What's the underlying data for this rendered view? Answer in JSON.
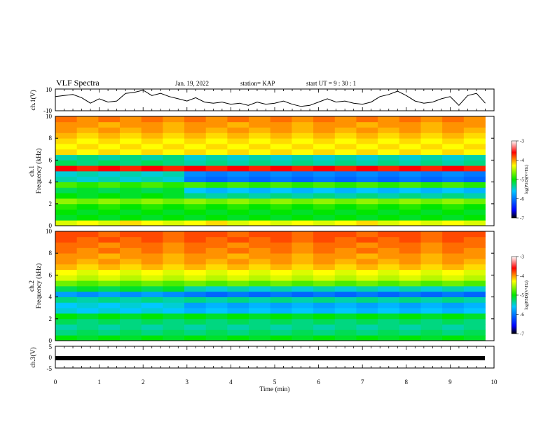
{
  "header": {
    "title": "VLF Spectra",
    "date": "Jan. 19, 2022",
    "station": "station= KAP",
    "start": "start  UT  =   9 : 30 : 1"
  },
  "axes": {
    "ch1_wave_ylabel": "ch.1(V)",
    "ch1_spec_ylabel_a": "ch.1",
    "ch1_spec_ylabel_b": "Frequency (kHz)",
    "ch2_spec_ylabel_a": "ch.2",
    "ch2_spec_ylabel_b": "Frequency (kHz)",
    "ch3_ylabel": "ch.3(V)",
    "xlabel": "Time (min)",
    "colorbar_label": "log(PSD)(V²/Hz)"
  },
  "chart_data": [
    {
      "panel": "ch.1 waveform",
      "type": "line",
      "x": [
        0.0,
        0.2,
        0.4,
        0.6,
        0.8,
        1.0,
        1.2,
        1.4,
        1.6,
        1.8,
        2.0,
        2.2,
        2.4,
        2.6,
        2.8,
        3.0,
        3.2,
        3.4,
        3.6,
        3.8,
        4.0,
        4.2,
        4.4,
        4.6,
        4.8,
        5.0,
        5.2,
        5.4,
        5.6,
        5.8,
        6.0,
        6.2,
        6.4,
        6.6,
        6.8,
        7.0,
        7.2,
        7.4,
        7.6,
        7.8,
        8.0,
        8.2,
        8.4,
        8.6,
        8.8,
        9.0,
        9.2,
        9.4,
        9.6,
        9.8
      ],
      "y": [
        3,
        4,
        5,
        2,
        -3,
        1,
        -2,
        -1,
        6,
        7,
        9,
        4,
        6,
        3,
        1,
        -1,
        2,
        -2,
        -3,
        -2,
        -4,
        -3,
        -5,
        -2,
        -4,
        -3,
        -1,
        -4,
        -6,
        -5,
        -2,
        1,
        -2,
        -1,
        -3,
        -4,
        -2,
        3,
        5,
        8,
        4,
        -1,
        -3,
        -2,
        1,
        3,
        -5,
        4,
        6,
        -3
      ],
      "xlim": [
        0,
        10
      ],
      "ylim": [
        -10,
        10
      ],
      "yticks": [
        "10",
        "-10"
      ]
    },
    {
      "panel": "ch.1 spectrogram",
      "type": "heatmap",
      "xlim": [
        0,
        10
      ],
      "ylim": [
        0,
        10
      ],
      "yticks": [
        "0",
        "2",
        "4",
        "6",
        "8",
        "10"
      ],
      "colorbar_ticks": [
        "-3",
        "-4",
        "-5",
        "-6",
        "-7"
      ],
      "time_bins": [
        0.0,
        0.5,
        1.0,
        1.5,
        2.0,
        2.5,
        3.0,
        3.5,
        4.0,
        4.5,
        5.0,
        5.5,
        6.0,
        6.5,
        7.0,
        7.5,
        8.0,
        8.5,
        9.0,
        9.5
      ],
      "freq_bins": [
        0.25,
        0.75,
        1.25,
        1.75,
        2.25,
        2.75,
        3.25,
        3.75,
        4.25,
        4.75,
        5.25,
        5.75,
        6.25,
        6.75,
        7.25,
        7.75,
        8.25,
        8.75,
        9.25,
        9.75
      ],
      "values": [
        [
          -4.4,
          -4.3,
          -4.4,
          -4.2,
          -4.3,
          -4.4,
          -4.3,
          -4.2,
          -4.4,
          -4.3,
          -4.4,
          -4.3,
          -4.4,
          -4.3,
          -4.2,
          -4.4,
          -4.3,
          -4.4,
          -4.3,
          -4.4
        ],
        [
          -5.1,
          -5.0,
          -5.1,
          -5.0,
          -5.1,
          -5.0,
          -5.1,
          -5.0,
          -5.1,
          -5.0,
          -5.1,
          -5.0,
          -5.1,
          -5.0,
          -5.1,
          -5.0,
          -5.1,
          -5.0,
          -5.1,
          -5.0
        ],
        [
          -5.0,
          -5.1,
          -5.0,
          -5.1,
          -5.0,
          -5.1,
          -5.0,
          -5.1,
          -5.0,
          -5.1,
          -5.0,
          -5.1,
          -5.0,
          -5.1,
          -5.0,
          -5.1,
          -5.0,
          -5.1,
          -5.0,
          -5.1
        ],
        [
          -4.9,
          -5.0,
          -4.9,
          -5.0,
          -4.9,
          -5.0,
          -4.9,
          -5.0,
          -4.9,
          -5.0,
          -4.9,
          -5.0,
          -4.9,
          -5.0,
          -4.9,
          -5.0,
          -4.9,
          -5.0,
          -4.9,
          -5.0
        ],
        [
          -4.6,
          -4.7,
          -4.6,
          -4.7,
          -4.6,
          -4.7,
          -4.6,
          -4.7,
          -4.6,
          -4.7,
          -4.6,
          -4.7,
          -4.6,
          -4.7,
          -4.6,
          -4.7,
          -4.6,
          -4.7,
          -4.6,
          -4.7
        ],
        [
          -5.0,
          -5.1,
          -5.0,
          -5.1,
          -5.0,
          -5.1,
          -5.3,
          -5.4,
          -5.3,
          -5.4,
          -5.3,
          -5.4,
          -5.3,
          -5.4,
          -5.3,
          -5.4,
          -5.3,
          -5.4,
          -5.3,
          -5.4
        ],
        [
          -5.2,
          -5.1,
          -5.2,
          -5.1,
          -5.2,
          -5.1,
          -5.6,
          -5.7,
          -5.6,
          -5.7,
          -5.6,
          -5.7,
          -5.6,
          -5.7,
          -5.6,
          -5.7,
          -5.6,
          -5.7,
          -5.6,
          -5.7
        ],
        [
          -4.8,
          -4.9,
          -4.8,
          -4.9,
          -4.8,
          -4.9,
          -4.8,
          -4.9,
          -4.8,
          -4.9,
          -4.8,
          -4.9,
          -4.8,
          -4.9,
          -4.8,
          -4.9,
          -4.8,
          -4.9,
          -4.8,
          -4.9
        ],
        [
          -5.4,
          -5.5,
          -5.4,
          -5.5,
          -5.4,
          -5.5,
          -6.0,
          -6.1,
          -6.0,
          -6.1,
          -6.0,
          -6.1,
          -6.0,
          -6.1,
          -6.0,
          -6.1,
          -6.0,
          -6.1,
          -6.0,
          -6.1
        ],
        [
          -5.5,
          -5.4,
          -5.5,
          -5.4,
          -5.5,
          -5.4,
          -5.9,
          -6.0,
          -5.9,
          -6.0,
          -5.9,
          -6.0,
          -5.9,
          -6.0,
          -5.9,
          -6.0,
          -5.9,
          -6.0,
          -5.9,
          -6.0
        ],
        [
          -3.6,
          -3.7,
          -3.6,
          -3.7,
          -3.6,
          -3.7,
          -3.6,
          -3.7,
          -3.6,
          -3.7,
          -3.6,
          -3.7,
          -3.6,
          -3.7,
          -3.6,
          -3.7,
          -3.6,
          -3.7,
          -3.6,
          -3.7
        ],
        [
          -5.2,
          -5.3,
          -5.2,
          -5.3,
          -5.2,
          -5.3,
          -5.4,
          -5.3,
          -5.4,
          -5.3,
          -5.4,
          -5.3,
          -5.4,
          -5.3,
          -5.4,
          -5.3,
          -5.4,
          -5.3,
          -5.4,
          -5.3
        ],
        [
          -5.4,
          -5.3,
          -5.4,
          -5.3,
          -5.4,
          -5.3,
          -5.5,
          -5.4,
          -5.5,
          -5.4,
          -5.5,
          -5.4,
          -5.5,
          -5.4,
          -5.5,
          -5.4,
          -5.5,
          -5.4,
          -5.5,
          -5.4
        ],
        [
          -4.2,
          -4.3,
          -4.2,
          -4.3,
          -4.2,
          -4.3,
          -4.2,
          -4.3,
          -4.2,
          -4.3,
          -4.2,
          -4.3,
          -4.2,
          -4.3,
          -4.2,
          -4.3,
          -4.2,
          -4.3,
          -4.2,
          -4.3
        ],
        [
          -4.3,
          -4.2,
          -4.3,
          -4.2,
          -4.3,
          -4.2,
          -4.3,
          -4.2,
          -4.3,
          -4.2,
          -4.3,
          -4.2,
          -4.3,
          -4.2,
          -4.3,
          -4.2,
          -4.3,
          -4.2,
          -4.3,
          -4.2
        ],
        [
          -4.2,
          -4.3,
          -4.2,
          -4.3,
          -4.2,
          -4.3,
          -4.2,
          -4.3,
          -4.2,
          -4.3,
          -4.2,
          -4.3,
          -4.2,
          -4.3,
          -4.2,
          -4.3,
          -4.2,
          -4.3,
          -4.2,
          -4.3
        ],
        [
          -4.1,
          -4.2,
          -4.1,
          -4.2,
          -4.1,
          -4.2,
          -4.1,
          -4.2,
          -4.1,
          -4.2,
          -4.1,
          -4.2,
          -4.1,
          -4.2,
          -4.1,
          -4.2,
          -4.1,
          -4.2,
          -4.1,
          -4.2
        ],
        [
          -4.0,
          -4.1,
          -4.0,
          -4.1,
          -4.0,
          -4.1,
          -4.0,
          -4.1,
          -4.0,
          -4.1,
          -4.0,
          -4.1,
          -4.0,
          -4.1,
          -4.0,
          -4.1,
          -4.0,
          -4.1,
          -4.0,
          -4.1
        ],
        [
          -4.0,
          -4.0,
          -4.1,
          -4.0,
          -4.0,
          -4.1,
          -4.0,
          -4.0,
          -4.1,
          -4.0,
          -4.0,
          -4.1,
          -4.0,
          -4.0,
          -4.1,
          -4.0,
          -4.0,
          -4.1,
          -4.0,
          -4.0
        ],
        [
          -3.9,
          -4.0,
          -3.9,
          -4.0,
          -3.9,
          -4.0,
          -3.9,
          -4.0,
          -3.9,
          -4.0,
          -3.9,
          -4.0,
          -3.9,
          -4.0,
          -3.9,
          -4.0,
          -3.9,
          -4.0,
          -3.9,
          -4.0
        ]
      ]
    },
    {
      "panel": "ch.2 spectrogram",
      "type": "heatmap",
      "xlim": [
        0,
        10
      ],
      "ylim": [
        0,
        10
      ],
      "yticks": [
        "0",
        "2",
        "4",
        "6",
        "8",
        "10"
      ],
      "colorbar_ticks": [
        "-3",
        "-4",
        "-5",
        "-6",
        "-7"
      ],
      "time_bins": [
        0.0,
        0.5,
        1.0,
        1.5,
        2.0,
        2.5,
        3.0,
        3.5,
        4.0,
        4.5,
        5.0,
        5.5,
        6.0,
        6.5,
        7.0,
        7.5,
        8.0,
        8.5,
        9.0,
        9.5
      ],
      "freq_bins": [
        0.25,
        0.75,
        1.25,
        1.75,
        2.25,
        2.75,
        3.25,
        3.75,
        4.25,
        4.75,
        5.25,
        5.75,
        6.25,
        6.75,
        7.25,
        7.75,
        8.25,
        8.75,
        9.25,
        9.75
      ],
      "values": [
        [
          -5.0,
          -5.1,
          -5.0,
          -5.1,
          -5.0,
          -5.1,
          -5.0,
          -5.1,
          -5.0,
          -5.1,
          -5.0,
          -5.1,
          -5.0,
          -5.1,
          -5.0,
          -5.1,
          -5.0,
          -5.1,
          -5.0,
          -5.1
        ],
        [
          -5.3,
          -5.2,
          -5.3,
          -5.2,
          -5.3,
          -5.2,
          -5.3,
          -5.2,
          -5.3,
          -5.2,
          -5.3,
          -5.2,
          -5.3,
          -5.2,
          -5.3,
          -5.2,
          -5.3,
          -5.2,
          -5.3,
          -5.2
        ],
        [
          -5.4,
          -5.3,
          -5.4,
          -5.3,
          -5.4,
          -5.3,
          -5.4,
          -5.3,
          -5.4,
          -5.3,
          -5.4,
          -5.3,
          -5.4,
          -5.3,
          -5.4,
          -5.3,
          -5.4,
          -5.3,
          -5.4,
          -5.3
        ],
        [
          -5.2,
          -5.3,
          -5.2,
          -5.3,
          -5.2,
          -5.3,
          -5.2,
          -5.3,
          -5.2,
          -5.3,
          -5.2,
          -5.3,
          -5.2,
          -5.3,
          -5.2,
          -5.3,
          -5.2,
          -5.3,
          -5.2,
          -5.3
        ],
        [
          -5.0,
          -5.1,
          -5.0,
          -5.1,
          -5.0,
          -5.1,
          -5.0,
          -5.1,
          -5.0,
          -5.1,
          -5.0,
          -5.1,
          -5.0,
          -5.1,
          -5.0,
          -5.1,
          -5.0,
          -5.1,
          -5.0,
          -5.1
        ],
        [
          -5.5,
          -5.6,
          -5.5,
          -5.6,
          -5.5,
          -5.6,
          -5.7,
          -5.6,
          -5.7,
          -5.6,
          -5.7,
          -5.6,
          -5.7,
          -5.6,
          -5.7,
          -5.6,
          -5.7,
          -5.6,
          -5.7,
          -5.6
        ],
        [
          -5.6,
          -5.5,
          -5.6,
          -5.5,
          -5.6,
          -5.5,
          -5.8,
          -5.7,
          -5.8,
          -5.7,
          -5.8,
          -5.7,
          -5.8,
          -5.7,
          -5.8,
          -5.7,
          -5.8,
          -5.7,
          -5.8,
          -5.7
        ],
        [
          -5.3,
          -5.4,
          -5.3,
          -5.4,
          -5.3,
          -5.4,
          -5.3,
          -5.4,
          -5.3,
          -5.4,
          -5.3,
          -5.4,
          -5.3,
          -5.4,
          -5.3,
          -5.4,
          -5.3,
          -5.4,
          -5.3,
          -5.4
        ],
        [
          -5.8,
          -5.9,
          -5.8,
          -5.9,
          -5.8,
          -5.9,
          -6.0,
          -6.1,
          -6.0,
          -6.1,
          -6.0,
          -6.1,
          -6.0,
          -6.1,
          -6.0,
          -6.1,
          -6.0,
          -6.1,
          -6.0,
          -6.1
        ],
        [
          -5.2,
          -5.1,
          -5.2,
          -5.1,
          -5.2,
          -5.1,
          -5.4,
          -5.5,
          -5.4,
          -5.5,
          -5.4,
          -5.5,
          -5.4,
          -5.5,
          -5.4,
          -5.5,
          -5.4,
          -5.5,
          -5.4,
          -5.5
        ],
        [
          -4.7,
          -4.8,
          -4.7,
          -4.8,
          -4.7,
          -4.8,
          -4.7,
          -4.8,
          -4.7,
          -4.8,
          -4.7,
          -4.8,
          -4.7,
          -4.8,
          -4.7,
          -4.8,
          -4.7,
          -4.8,
          -4.7,
          -4.8
        ],
        [
          -4.4,
          -4.5,
          -4.4,
          -4.5,
          -4.4,
          -4.5,
          -4.4,
          -4.5,
          -4.4,
          -4.5,
          -4.4,
          -4.5,
          -4.4,
          -4.5,
          -4.4,
          -4.5,
          -4.4,
          -4.5,
          -4.4,
          -4.5
        ],
        [
          -4.3,
          -4.4,
          -4.3,
          -4.4,
          -4.3,
          -4.4,
          -4.3,
          -4.4,
          -4.3,
          -4.4,
          -4.3,
          -4.4,
          -4.3,
          -4.4,
          -4.3,
          -4.4,
          -4.3,
          -4.4,
          -4.3,
          -4.4
        ],
        [
          -4.1,
          -4.2,
          -4.1,
          -4.2,
          -4.1,
          -4.2,
          -4.1,
          -4.2,
          -4.1,
          -4.2,
          -4.1,
          -4.2,
          -4.1,
          -4.2,
          -4.1,
          -4.2,
          -4.1,
          -4.2,
          -4.1,
          -4.2
        ],
        [
          -4.0,
          -4.1,
          -4.0,
          -4.1,
          -4.0,
          -4.1,
          -4.0,
          -4.1,
          -4.0,
          -4.1,
          -4.0,
          -4.1,
          -4.0,
          -4.1,
          -4.0,
          -4.1,
          -4.0,
          -4.1,
          -4.0,
          -4.1
        ],
        [
          -4.0,
          -4.0,
          -4.1,
          -4.0,
          -4.0,
          -4.1,
          -4.0,
          -4.0,
          -4.1,
          -4.0,
          -4.0,
          -4.1,
          -4.0,
          -4.0,
          -4.1,
          -4.0,
          -4.0,
          -4.1,
          -4.0,
          -4.0
        ],
        [
          -3.9,
          -4.0,
          -3.9,
          -4.0,
          -3.9,
          -4.0,
          -3.9,
          -4.0,
          -3.9,
          -4.0,
          -3.9,
          -4.0,
          -3.9,
          -4.0,
          -3.9,
          -4.0,
          -3.9,
          -4.0,
          -3.9,
          -4.0
        ],
        [
          -3.9,
          -3.9,
          -4.0,
          -3.9,
          -3.9,
          -4.0,
          -3.9,
          -3.9,
          -4.0,
          -3.9,
          -3.9,
          -4.0,
          -3.9,
          -3.9,
          -4.0,
          -3.9,
          -3.9,
          -4.0,
          -3.9,
          -3.9
        ],
        [
          -3.8,
          -3.9,
          -3.8,
          -3.9,
          -3.8,
          -3.9,
          -3.8,
          -3.9,
          -3.8,
          -3.9,
          -3.8,
          -3.9,
          -3.8,
          -3.9,
          -3.8,
          -3.9,
          -3.8,
          -3.9,
          -3.8,
          -3.9
        ],
        [
          -3.8,
          -3.8,
          -3.9,
          -3.8,
          -3.8,
          -3.9,
          -3.8,
          -3.8,
          -3.9,
          -3.8,
          -3.8,
          -3.9,
          -3.8,
          -3.8,
          -3.9,
          -3.8,
          -3.8,
          -3.9,
          -3.8,
          -3.8
        ]
      ]
    },
    {
      "panel": "ch.3 waveform",
      "type": "line",
      "x": [
        0,
        9.8
      ],
      "y": [
        -1,
        -1
      ],
      "xlim": [
        0,
        10
      ],
      "ylim": [
        -5,
        5
      ],
      "yticks": [
        "5",
        "0",
        "-5"
      ]
    }
  ],
  "xticks": [
    "0",
    "1",
    "2",
    "3",
    "4",
    "5",
    "6",
    "7",
    "8",
    "9",
    "10"
  ],
  "colors": {
    "colormap": [
      "#000000",
      "#0000ff",
      "#00c8ff",
      "#00e600",
      "#ffff00",
      "#ff0000",
      "#ffffff"
    ],
    "line": "#000000"
  }
}
